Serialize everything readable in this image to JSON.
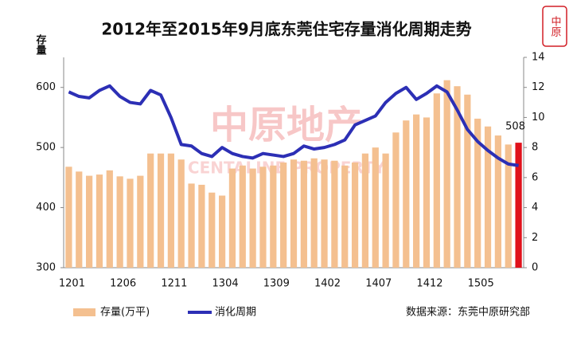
{
  "chart_data": {
    "type": "bar_line",
    "title": "2012年至2015年9月底东莞住宅存量消化周期走势",
    "y_label": "存量",
    "watermark": "中原地产",
    "watermark_sub": "CENTALINE PROPERTY",
    "logo": "中原",
    "source": "数据来源：东莞中原研究部",
    "categories": [
      "1201",
      null,
      null,
      null,
      null,
      "1206",
      null,
      null,
      null,
      null,
      "1211",
      null,
      null,
      null,
      null,
      "1304",
      null,
      null,
      null,
      null,
      "1309",
      null,
      null,
      null,
      null,
      "1402",
      null,
      null,
      null,
      null,
      "1407",
      null,
      null,
      null,
      null,
      "1412",
      null,
      null,
      null,
      null,
      "1505",
      null,
      null,
      null,
      null
    ],
    "series": [
      {
        "name": "存量(万平)",
        "color": "#f4c090",
        "axis": "y",
        "colors": [
          "#f4c090",
          "#f4c090",
          "#f4c090",
          "#f4c090",
          "#f4c090",
          "#f4c090",
          "#f4c090",
          "#f4c090",
          "#f4c090",
          "#f4c090",
          "#f4c090",
          "#f4c090",
          "#f4c090",
          "#f4c090",
          "#f4c090",
          "#f4c090",
          "#f4c090",
          "#f4c090",
          "#f4c090",
          "#f4c090",
          "#f4c090",
          "#f4c090",
          "#f4c090",
          "#f4c090",
          "#f4c090",
          "#f4c090",
          "#f4c090",
          "#f4c090",
          "#f4c090",
          "#f4c090",
          "#f4c090",
          "#f4c090",
          "#f4c090",
          "#f4c090",
          "#f4c090",
          "#f4c090",
          "#f4c090",
          "#f4c090",
          "#f4c090",
          "#f4c090",
          "#f4c090",
          "#f4c090",
          "#f4c090",
          "#f4c090",
          "#e0121b"
        ],
        "values": [
          468,
          460,
          453,
          455,
          462,
          452,
          448,
          453,
          490,
          490,
          490,
          480,
          440,
          438,
          425,
          420,
          465,
          470,
          465,
          468,
          470,
          475,
          480,
          478,
          482,
          480,
          478,
          470,
          475,
          490,
          500,
          490,
          525,
          545,
          555,
          550,
          590,
          612,
          602,
          588,
          548,
          535,
          520,
          505,
          508
        ]
      },
      {
        "name": "消化周期",
        "color": "#2c2fb5",
        "axis": "y2",
        "values": [
          11.7,
          11.4,
          11.3,
          11.8,
          12.1,
          11.4,
          11.0,
          10.9,
          11.8,
          11.5,
          10.0,
          8.2,
          8.1,
          7.6,
          7.4,
          8.0,
          7.6,
          7.4,
          7.3,
          7.6,
          7.5,
          7.4,
          7.6,
          8.1,
          7.9,
          8.0,
          8.2,
          8.5,
          9.5,
          9.8,
          10.1,
          11.0,
          11.6,
          12.0,
          11.2,
          11.6,
          12.1,
          11.7,
          10.5,
          9.2,
          8.4,
          7.8,
          7.3,
          6.9,
          6.8
        ]
      }
    ],
    "ylim": [
      300,
      650
    ],
    "yticks": [
      300,
      400,
      500,
      600
    ],
    "y2lim": [
      0,
      14
    ],
    "y2ticks": [
      0,
      2,
      4,
      6,
      8,
      10,
      12,
      14
    ]
  }
}
